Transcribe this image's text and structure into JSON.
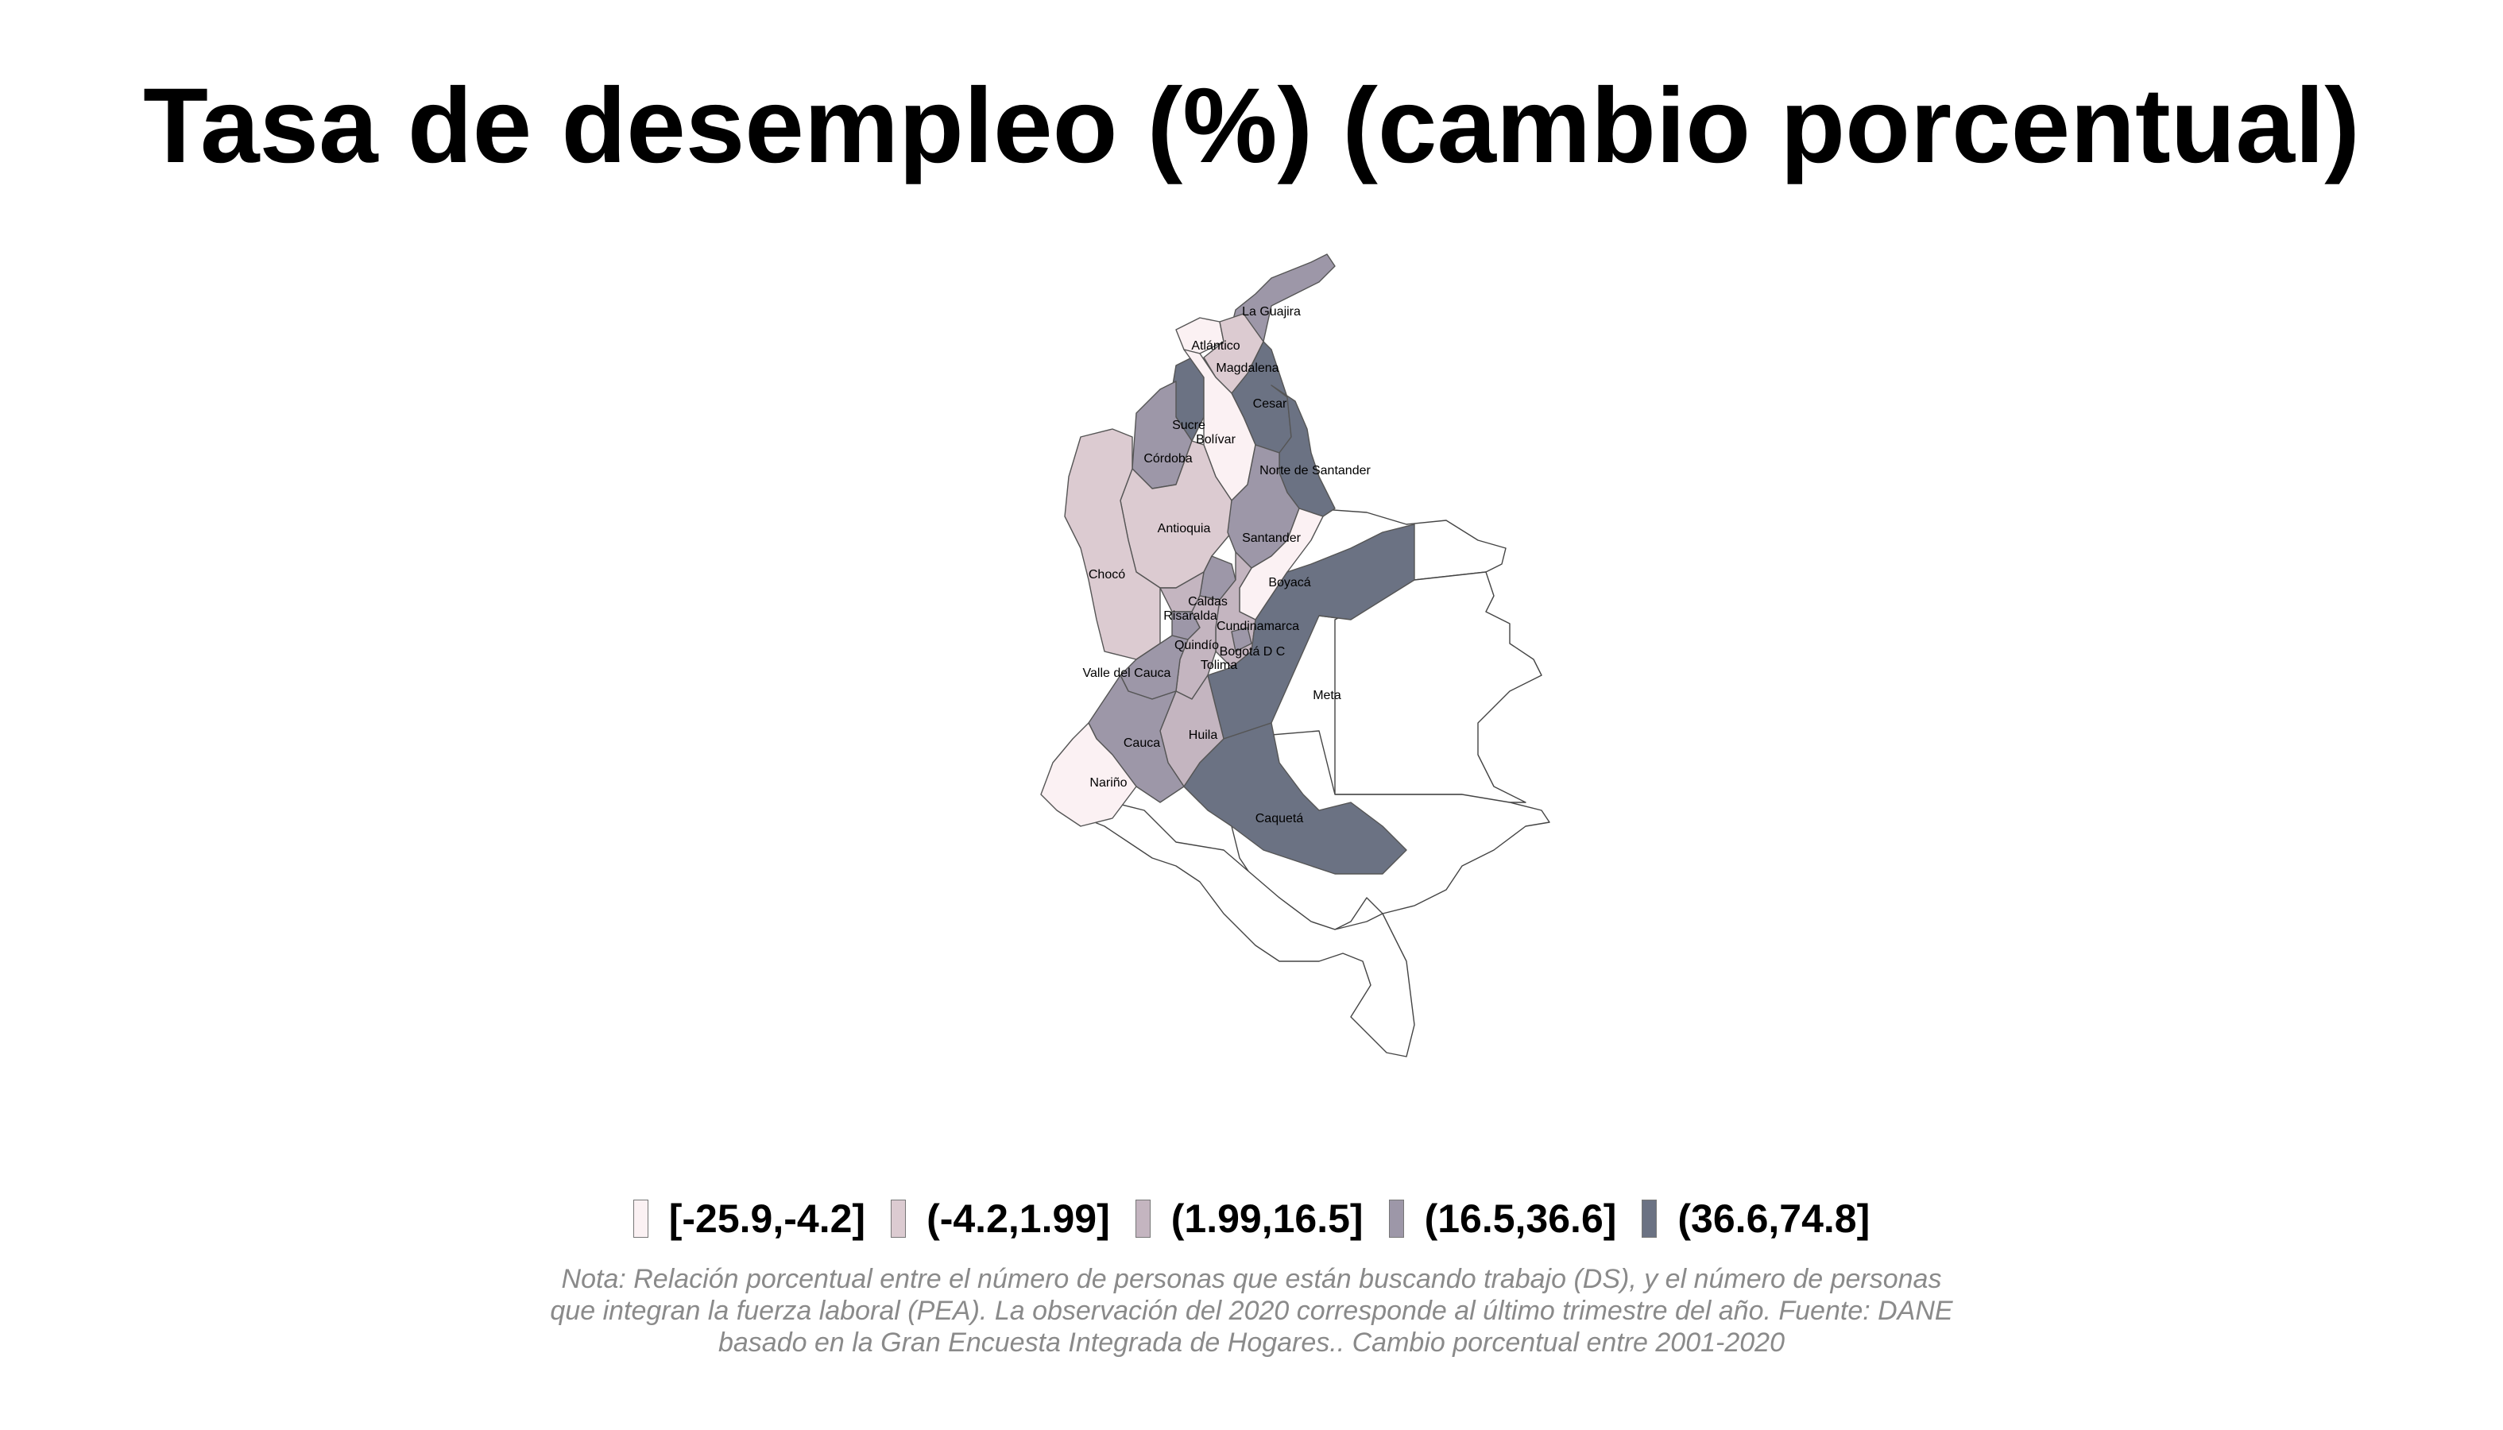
{
  "title": "Tasa de desempleo (%) (cambio porcentual)",
  "colors": {
    "bin1": "#fbf1f3",
    "bin2": "#dccbd1",
    "bin3": "#c4b5c0",
    "bin4": "#9d97a8",
    "bin5": "#6b7283",
    "nodata": "#ffffff"
  },
  "legend": [
    {
      "label": "[-25.9,-4.2]",
      "color": "#fbf1f3"
    },
    {
      "label": "(-4.2,1.99]",
      "color": "#dccbd1"
    },
    {
      "label": "(1.99,16.5]",
      "color": "#c4b5c0"
    },
    {
      "label": "(16.5,36.6]",
      "color": "#9d97a8"
    },
    {
      "label": "(36.6,74.8]",
      "color": "#6b7283"
    }
  ],
  "departments": [
    {
      "name": "La Guajira",
      "bin": 4
    },
    {
      "name": "Atlántico",
      "bin": 1
    },
    {
      "name": "Magdalena",
      "bin": 2
    },
    {
      "name": "Cesar",
      "bin": 5
    },
    {
      "name": "Sucre",
      "bin": 5
    },
    {
      "name": "Bolívar",
      "bin": 1
    },
    {
      "name": "Córdoba",
      "bin": 4
    },
    {
      "name": "Norte de Santander",
      "bin": 5
    },
    {
      "name": "Antioquia",
      "bin": 2
    },
    {
      "name": "Santander",
      "bin": 4
    },
    {
      "name": "Chocó",
      "bin": 2
    },
    {
      "name": "Boyacá",
      "bin": 1
    },
    {
      "name": "Caldas",
      "bin": 4
    },
    {
      "name": "Risaralda",
      "bin": 3
    },
    {
      "name": "Cundinamarca",
      "bin": 3
    },
    {
      "name": "Quindío",
      "bin": 4
    },
    {
      "name": "Bogotá D C",
      "bin": 4
    },
    {
      "name": "Tolima",
      "bin": 3
    },
    {
      "name": "Valle del Cauca",
      "bin": 4
    },
    {
      "name": "Meta",
      "bin": 5
    },
    {
      "name": "Huila",
      "bin": 3
    },
    {
      "name": "Cauca",
      "bin": 4
    },
    {
      "name": "Nariño",
      "bin": 1
    },
    {
      "name": "Caquetá",
      "bin": 5
    }
  ],
  "note": "Nota: Relación porcentual entre el número de personas que están buscando trabajo (DS), y el número de personas que integran la fuerza laboral (PEA). La observación del 2020 corresponde al último trimestre del año. Fuente: DANE basado en la Gran Encuesta Integrada de Hogares.. Cambio porcentual entre 2001-2020"
}
